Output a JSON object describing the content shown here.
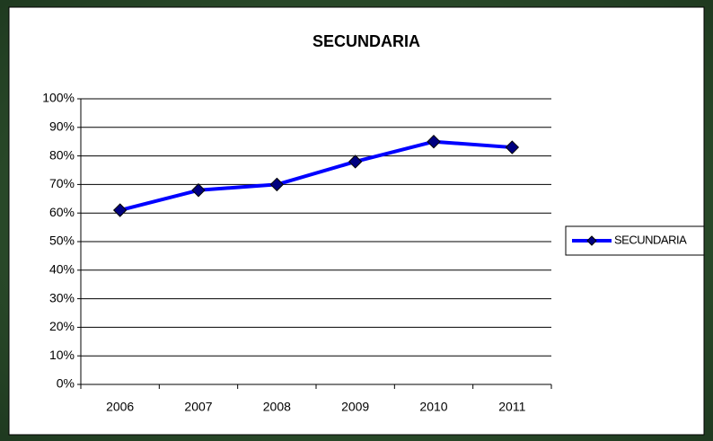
{
  "chart_data": {
    "type": "line",
    "title": "SECUNDARIA",
    "categories": [
      "2006",
      "2007",
      "2008",
      "2009",
      "2010",
      "2011"
    ],
    "series": [
      {
        "name": "SECUNDARIA",
        "color": "#0000ff",
        "marker_color": "#000080",
        "values": [
          61,
          68,
          70,
          78,
          85,
          83
        ]
      }
    ],
    "ylim": [
      0,
      100
    ],
    "yticks": [
      {
        "value": 0,
        "label": "0%"
      },
      {
        "value": 10,
        "label": "10%"
      },
      {
        "value": 20,
        "label": "20%"
      },
      {
        "value": 30,
        "label": "30%"
      },
      {
        "value": 40,
        "label": "40%"
      },
      {
        "value": 50,
        "label": "50%"
      },
      {
        "value": 60,
        "label": "60%"
      },
      {
        "value": 70,
        "label": "70%"
      },
      {
        "value": 80,
        "label": "80%"
      },
      {
        "value": 90,
        "label": "90%"
      },
      {
        "value": 100,
        "label": "100%"
      }
    ],
    "grid": true,
    "legend": "right"
  }
}
